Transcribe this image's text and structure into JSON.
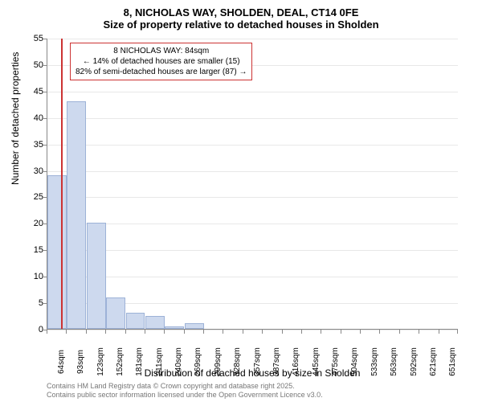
{
  "chart": {
    "type": "histogram",
    "title_line1": "8, NICHOLAS WAY, SHOLDEN, DEAL, CT14 0FE",
    "title_line2": "Size of property relative to detached houses in Sholden",
    "ylabel": "Number of detached properties",
    "xlabel": "Distribution of detached houses by size in Sholden",
    "background_color": "#ffffff",
    "grid_color": "#e8e8e8",
    "axis_color": "#888888",
    "bar_fill": "#cdd9ee",
    "bar_border": "#9db2d7",
    "refline_color": "#cc3333",
    "annotation_border": "#cc3333",
    "ylim": [
      0,
      55
    ],
    "ytick_step": 5,
    "yticks": [
      0,
      5,
      10,
      15,
      20,
      25,
      30,
      35,
      40,
      45,
      50,
      55
    ],
    "categories": [
      "64sqm",
      "93sqm",
      "123sqm",
      "152sqm",
      "181sqm",
      "211sqm",
      "240sqm",
      "269sqm",
      "299sqm",
      "328sqm",
      "357sqm",
      "387sqm",
      "416sqm",
      "445sqm",
      "475sqm",
      "504sqm",
      "533sqm",
      "563sqm",
      "592sqm",
      "621sqm",
      "651sqm"
    ],
    "values": [
      29,
      43,
      20,
      6,
      3,
      2.5,
      0.5,
      1,
      0,
      0,
      0,
      0,
      0,
      0,
      0,
      0,
      0,
      0,
      0,
      0
    ],
    "refline_position": 0.7,
    "annotation": {
      "line1": "8 NICHOLAS WAY: 84sqm",
      "line2": "← 14% of detached houses are smaller (15)",
      "line3": "82% of semi-detached houses are larger (87) →"
    },
    "footer": {
      "line1": "Contains HM Land Registry data © Crown copyright and database right 2025.",
      "line2": "Contains public sector information licensed under the Open Government Licence v3.0."
    },
    "title_fontsize": 13,
    "label_fontsize": 12,
    "tick_fontsize": 11,
    "xtick_fontsize": 10,
    "footer_fontsize": 9,
    "annotation_fontsize": 10
  }
}
